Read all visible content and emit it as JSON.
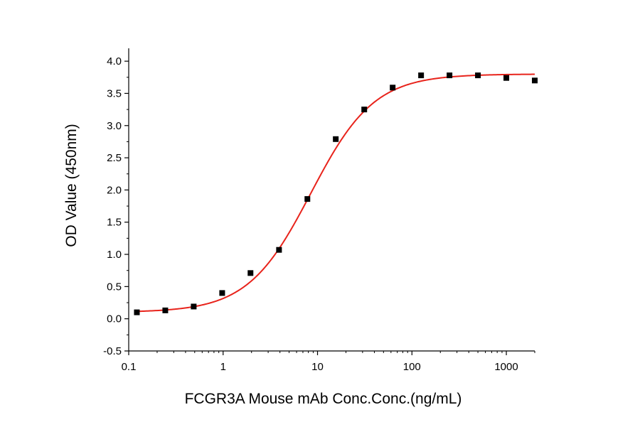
{
  "chart_data": {
    "type": "scatter",
    "xlabel": "FCGR3A Mouse mAb Conc.Conc.(ng/mL)",
    "ylabel": "OD Value (450nm)",
    "x_scale": "log",
    "xlim": [
      0.1,
      2000
    ],
    "ylim": [
      -0.5,
      4.2
    ],
    "x_ticks": [
      0.1,
      1,
      10,
      100,
      1000
    ],
    "x_tick_labels": [
      "0.1",
      "1",
      "10",
      "100",
      "1000"
    ],
    "y_ticks": [
      -0.5,
      0.0,
      0.5,
      1.0,
      1.5,
      2.0,
      2.5,
      3.0,
      3.5,
      4.0
    ],
    "y_tick_labels": [
      "-0.5",
      "0.0",
      "0.5",
      "1.0",
      "1.5",
      "2.0",
      "2.5",
      "3.0",
      "3.5",
      "4.0"
    ],
    "grid": false,
    "legend": "none",
    "series": [
      {
        "marker": "square",
        "color": "#000000",
        "x": [
          0.122,
          0.244,
          0.488,
          0.977,
          1.95,
          3.91,
          7.81,
          15.6,
          31.25,
          62.5,
          125,
          250,
          500,
          1000,
          2000
        ],
        "y": [
          0.1,
          0.13,
          0.19,
          0.4,
          0.71,
          1.07,
          1.86,
          2.79,
          3.25,
          3.59,
          3.78,
          3.78,
          3.78,
          3.74,
          3.7
        ]
      }
    ],
    "fit": {
      "type": "four-parameter-logistic",
      "color": "#e8231b",
      "bottom": 0.1,
      "top": 3.8,
      "ec50": 8.5,
      "hill": 1.3,
      "x_range": [
        0.115,
        2000
      ]
    }
  }
}
